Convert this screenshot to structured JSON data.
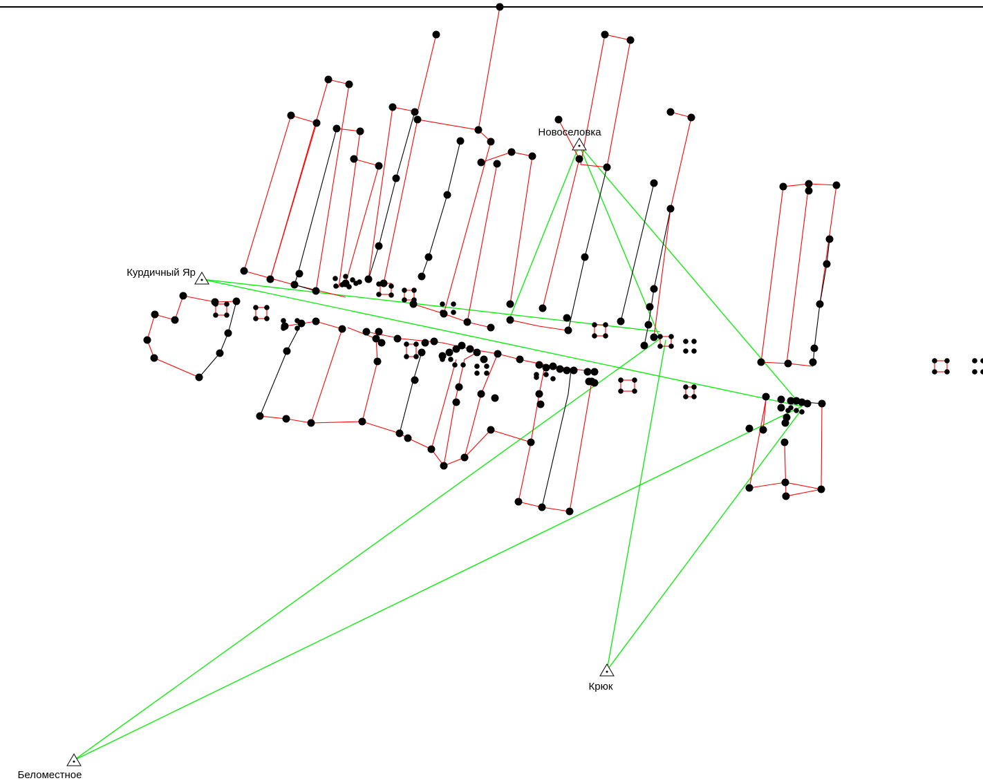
{
  "map": {
    "stations": [
      {
        "id": "kurdichny",
        "name": "Курдичный Яр"
      },
      {
        "id": "novoselovka",
        "name": "Новоселовка"
      },
      {
        "id": "kryuk",
        "name": "Крюк"
      },
      {
        "id": "belomestnoe",
        "name": "Беломестное"
      }
    ]
  },
  "colors": {
    "frame_line": "#000000",
    "boundary_red": "#ff0000",
    "traverse_black": "#000000",
    "observation_green": "#00ee00",
    "point_fill": "#000000"
  }
}
